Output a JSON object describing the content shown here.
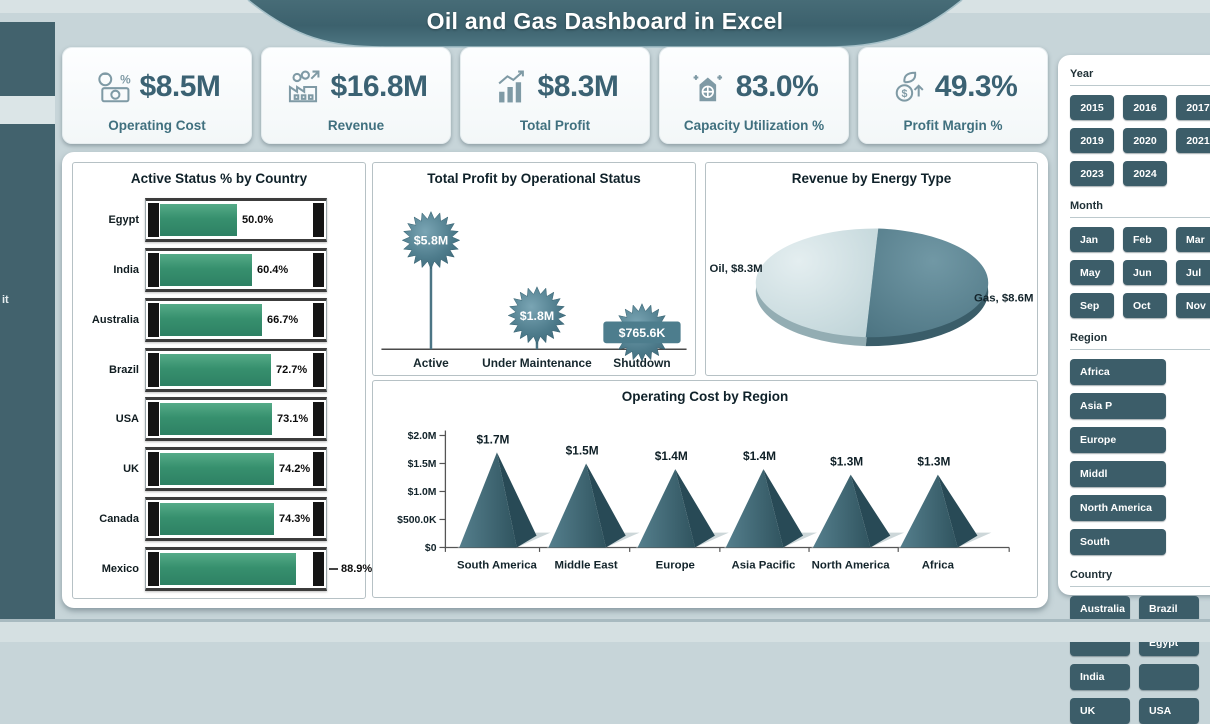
{
  "title": "Oil and Gas Dashboard in Excel",
  "left_rail": {
    "partial_label": "it"
  },
  "kpis": [
    {
      "value": "$8.5M",
      "label": "Operating Cost",
      "icon": "cash-percent-icon"
    },
    {
      "value": "$16.8M",
      "label": "Revenue",
      "icon": "factory-revenue-icon"
    },
    {
      "value": "$8.3M",
      "label": "Total Profit",
      "icon": "profit-chart-icon"
    },
    {
      "value": "83.0%",
      "label": "Capacity Utilization %",
      "icon": "factory-capacity-icon"
    },
    {
      "value": "49.3%",
      "label": "Profit Margin %",
      "icon": "coin-growth-icon"
    }
  ],
  "chart_data": [
    {
      "id": "active_status_by_country",
      "type": "bar",
      "orientation": "horizontal",
      "title": "Active Status % by Country",
      "categories": [
        "Egypt",
        "India",
        "Australia",
        "Brazil",
        "USA",
        "UK",
        "Canada",
        "Mexico"
      ],
      "values": [
        50.0,
        60.4,
        66.7,
        72.7,
        73.1,
        74.2,
        74.3,
        88.9
      ],
      "labels": [
        "50.0%",
        "60.4%",
        "66.7%",
        "72.7%",
        "73.1%",
        "74.2%",
        "74.3%",
        "88.9%"
      ],
      "xlim": [
        0,
        100
      ],
      "bar_color": "#3f9878"
    },
    {
      "id": "total_profit_by_operational_status",
      "type": "lollipop",
      "title": "Total Profit by Operational Status",
      "categories": [
        "Active",
        "Under Maintenance",
        "Shutdown"
      ],
      "values": [
        5800000,
        1800000,
        765600
      ],
      "labels": [
        "$5.8M",
        "$1.8M",
        "$765.6K"
      ],
      "marker": "starburst",
      "ylim": [
        0,
        6000000
      ]
    },
    {
      "id": "revenue_by_energy_type",
      "type": "pie",
      "title": "Revenue by Energy Type",
      "slices": [
        {
          "name": "Oil",
          "value": 8300000,
          "label": "Oil, $8.3M",
          "color": "#c9dbdf"
        },
        {
          "name": "Gas",
          "value": 8600000,
          "label": "Gas, $8.6M",
          "color": "#577f8e"
        }
      ]
    },
    {
      "id": "operating_cost_by_region",
      "type": "bar",
      "shape": "pyramid",
      "title": "Operating Cost by Region",
      "categories": [
        "South America",
        "Middle East",
        "Europe",
        "Asia Pacific",
        "North America",
        "Africa"
      ],
      "values": [
        1700000,
        1500000,
        1400000,
        1400000,
        1300000,
        1300000
      ],
      "labels": [
        "$1.7M",
        "$1.5M",
        "$1.4M",
        "$1.4M",
        "$1.3M",
        "$1.3M"
      ],
      "yticks": [
        {
          "label": "$2.0M",
          "value": 2000000
        },
        {
          "label": "$1.5M",
          "value": 1500000
        },
        {
          "label": "$1.0M",
          "value": 1000000
        },
        {
          "label": "$500.0K",
          "value": 500000
        },
        {
          "label": "$0",
          "value": 0
        }
      ],
      "ylim": [
        0,
        2000000
      ]
    }
  ],
  "slicers": [
    {
      "id": "year",
      "label": "Year",
      "items": [
        "2015",
        "2016",
        "2017",
        "2019",
        "2020",
        "2021",
        "2023",
        "2024"
      ]
    },
    {
      "id": "month",
      "label": "Month",
      "items": [
        "Jan",
        "Feb",
        "Mar",
        "May",
        "Jun",
        "Jul",
        "Sep",
        "Oct",
        "Nov"
      ]
    },
    {
      "id": "region",
      "label": "Region",
      "items": [
        "Africa",
        "Asia P",
        "Europe",
        "Middl",
        "North America",
        "South"
      ]
    },
    {
      "id": "country",
      "label": "Country",
      "items": [
        "Australia",
        "Brazil",
        "",
        "Egypt",
        "India",
        "",
        "UK",
        "USA"
      ]
    }
  ],
  "colors": {
    "background": "#c7d5d9",
    "banner_teal": "#40656f",
    "slicer_button": "#3c5d69",
    "bar_green": "#3f9878",
    "pie_oil": "#c9dbdf",
    "pie_gas": "#577f8e",
    "pyramid_teal": "#44707e"
  }
}
